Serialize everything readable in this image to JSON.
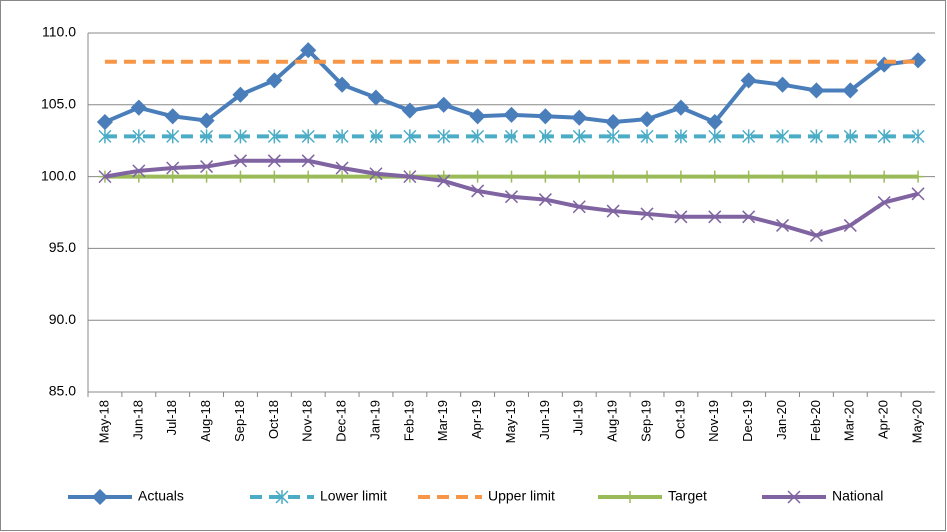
{
  "chart_data": {
    "type": "line",
    "categories": [
      "May-18",
      "Jun-18",
      "Jul-18",
      "Aug-18",
      "Sep-18",
      "Oct-18",
      "Nov-18",
      "Dec-18",
      "Jan-19",
      "Feb-19",
      "Mar-19",
      "Apr-19",
      "May-19",
      "Jun-19",
      "Jul-19",
      "Aug-19",
      "Sep-19",
      "Oct-19",
      "Nov-19",
      "Dec-19",
      "Jan-20",
      "Feb-20",
      "Mar-20",
      "Apr-20",
      "May-20"
    ],
    "series": [
      {
        "name": "Actuals",
        "color": "#4a7ebb",
        "marker": "diamond",
        "dash": false,
        "values": [
          103.8,
          104.8,
          104.2,
          103.9,
          105.7,
          106.7,
          108.8,
          106.4,
          105.5,
          104.6,
          105.0,
          104.2,
          104.3,
          104.2,
          104.1,
          103.8,
          104.0,
          104.8,
          103.8,
          106.7,
          106.4,
          106.0,
          106.0,
          107.8,
          108.1
        ]
      },
      {
        "name": "Lower limit",
        "color": "#4bacc6",
        "marker": "star",
        "dash": true,
        "values": [
          102.8,
          102.8,
          102.8,
          102.8,
          102.8,
          102.8,
          102.8,
          102.8,
          102.8,
          102.8,
          102.8,
          102.8,
          102.8,
          102.8,
          102.8,
          102.8,
          102.8,
          102.8,
          102.8,
          102.8,
          102.8,
          102.8,
          102.8,
          102.8,
          102.8
        ]
      },
      {
        "name": "Upper limit",
        "color": "#f79646",
        "marker": "none",
        "dash": true,
        "values": [
          108,
          108,
          108,
          108,
          108,
          108,
          108,
          108,
          108,
          108,
          108,
          108,
          108,
          108,
          108,
          108,
          108,
          108,
          108,
          108,
          108,
          108,
          108,
          108,
          108
        ]
      },
      {
        "name": "Target",
        "color": "#9bbb59",
        "marker": "plus",
        "dash": false,
        "values": [
          100,
          100,
          100,
          100,
          100,
          100,
          100,
          100,
          100,
          100,
          100,
          100,
          100,
          100,
          100,
          100,
          100,
          100,
          100,
          100,
          100,
          100,
          100,
          100,
          100
        ]
      },
      {
        "name": "National",
        "color": "#8064a2",
        "marker": "cross",
        "dash": false,
        "values": [
          100.0,
          100.4,
          100.6,
          100.7,
          101.1,
          101.1,
          101.1,
          100.6,
          100.2,
          100.0,
          99.7,
          99.0,
          98.6,
          98.4,
          97.9,
          97.6,
          97.4,
          97.2,
          97.2,
          97.2,
          96.6,
          95.9,
          96.6,
          98.2,
          98.8
        ]
      }
    ],
    "ylim": [
      85,
      110
    ],
    "yticks": [
      {
        "value": 85,
        "label": "85.0"
      },
      {
        "value": 90,
        "label": "90.0"
      },
      {
        "value": 95,
        "label": "95.0"
      },
      {
        "value": 100,
        "label": "100.0"
      },
      {
        "value": 105,
        "label": "105.0"
      },
      {
        "value": 110,
        "label": "110.0"
      }
    ],
    "grid": true,
    "legend": "bottom"
  }
}
